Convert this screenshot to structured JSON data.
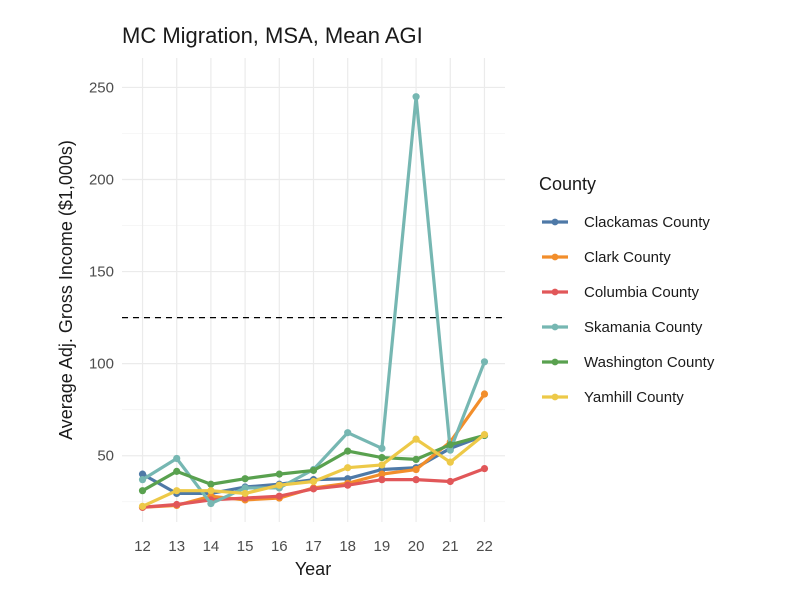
{
  "chart_data": {
    "type": "line",
    "title": "MC Migration, MSA, Mean AGI",
    "xlabel": "Year",
    "ylabel": "Average Adj. Gross Income ($1,000s)",
    "x": [
      12,
      13,
      14,
      15,
      16,
      17,
      18,
      19,
      20,
      21,
      22
    ],
    "x_tick_labels": [
      "12",
      "13",
      "14",
      "15",
      "16",
      "17",
      "18",
      "19",
      "20",
      "21",
      "22"
    ],
    "y_ticks": [
      50,
      100,
      150,
      200,
      250
    ],
    "y_tick_labels": [
      "50",
      "100",
      "150",
      "200",
      "250"
    ],
    "ylim": [
      14,
      266
    ],
    "xlim": [
      11.4,
      22.6
    ],
    "grid": true,
    "reference_line": {
      "y": 125,
      "style": "dashed",
      "color": "#000000"
    },
    "legend": {
      "title": "County",
      "position": "right"
    },
    "series": [
      {
        "name": "Clackamas County",
        "color": "#4E79A7",
        "values": [
          40,
          29.5,
          29.5,
          33,
          34.5,
          37,
          37.5,
          42.5,
          43.5,
          54,
          61
        ]
      },
      {
        "name": "Clark County",
        "color": "#F28E2B",
        "values": [
          22,
          23,
          28,
          26,
          27,
          32.5,
          35,
          40,
          42.5,
          57.5,
          83.5
        ]
      },
      {
        "name": "Columbia County",
        "color": "#E15759",
        "values": [
          22,
          23.5,
          26,
          27,
          28,
          32,
          34,
          37,
          37,
          36,
          43
        ]
      },
      {
        "name": "Skamania County",
        "color": "#76B7B2",
        "values": [
          37,
          48.5,
          24,
          32.5,
          32.5,
          42.5,
          62.5,
          54,
          245,
          53,
          101
        ]
      },
      {
        "name": "Washington County",
        "color": "#59A14F",
        "values": [
          31,
          41.5,
          34.5,
          37.5,
          40,
          42,
          52.5,
          49,
          48,
          56,
          61
        ]
      },
      {
        "name": "Yamhill County",
        "color": "#EDC948",
        "values": [
          22.5,
          31,
          31,
          29.5,
          34,
          36,
          43.5,
          45,
          59,
          46.5,
          61.5
        ]
      }
    ]
  }
}
